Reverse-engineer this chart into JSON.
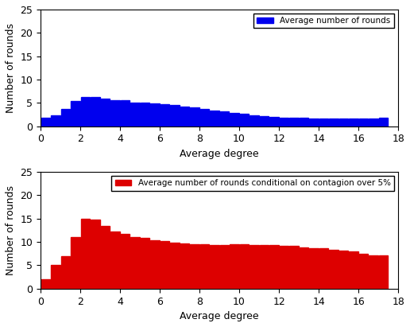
{
  "blue_values": [
    1.8,
    2.3,
    3.7,
    5.4,
    6.2,
    6.2,
    5.9,
    5.6,
    5.5,
    5.1,
    5.0,
    4.9,
    4.7,
    4.5,
    4.2,
    4.1,
    3.7,
    3.4,
    3.1,
    2.9,
    2.6,
    2.3,
    2.1,
    2.0,
    1.9,
    1.8,
    1.8,
    1.7,
    1.7,
    1.7,
    1.7,
    1.7,
    1.7,
    1.7,
    1.8
  ],
  "red_values": [
    2.0,
    5.0,
    7.0,
    11.0,
    15.0,
    14.8,
    13.5,
    12.2,
    11.7,
    11.0,
    10.8,
    10.3,
    10.2,
    9.8,
    9.7,
    9.5,
    9.5,
    9.4,
    9.4,
    9.5,
    9.5,
    9.4,
    9.4,
    9.3,
    9.2,
    9.1,
    8.9,
    8.7,
    8.6,
    8.3,
    8.2,
    8.0,
    7.5,
    7.2,
    7.2
  ],
  "blue_color": "#0000EE",
  "red_color": "#DD0000",
  "xlabel": "Average degree",
  "ylabel": "Number of rounds",
  "blue_legend": "Average number of rounds",
  "red_legend": "Average number of rounds conditional on contagion over 5%",
  "ylim": [
    0,
    25
  ],
  "xlim": [
    0,
    18
  ],
  "yticks": [
    0,
    5,
    10,
    15,
    20,
    25
  ],
  "xticks": [
    0,
    2,
    4,
    6,
    8,
    10,
    12,
    14,
    16,
    18
  ],
  "bg_color": "#ffffff",
  "bar_width": 0.46,
  "bar_step": 0.5,
  "bar_start": 0.25,
  "fontsize": 9,
  "legend_fontsize": 7.5
}
